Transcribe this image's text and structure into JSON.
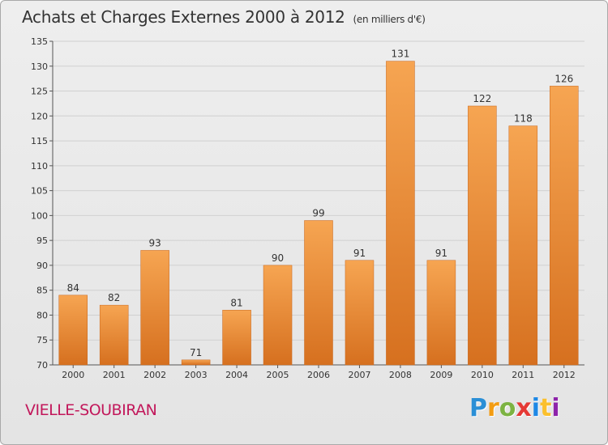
{
  "title": "Achats et Charges Externes 2000 à 2012",
  "subtitle": "(en milliers d'€)",
  "commune": "VIELLE-SOUBIRAN",
  "logo": {
    "letters": [
      "P",
      "r",
      "o",
      "x",
      "i",
      "t",
      "i"
    ],
    "colors": [
      "#2a8fd6",
      "#f39c12",
      "#7cb342",
      "#e53935",
      "#1e88e5",
      "#fbc02d",
      "#8e24aa"
    ]
  },
  "colors": {
    "bar": "#f0923a",
    "bar_dark": "#d2691e",
    "grid": "#d0d0d0"
  },
  "chart_data": {
    "type": "bar",
    "categories": [
      "2000",
      "2001",
      "2002",
      "2003",
      "2004",
      "2005",
      "2006",
      "2007",
      "2008",
      "2009",
      "2010",
      "2011",
      "2012"
    ],
    "values": [
      84,
      82,
      93,
      71,
      81,
      90,
      99,
      91,
      131,
      91,
      122,
      118,
      126
    ],
    "title": "Achats et Charges Externes 2000 à 2012",
    "xlabel": "",
    "ylabel": "",
    "ylim": [
      70,
      135
    ],
    "yticks": [
      70,
      75,
      80,
      85,
      90,
      95,
      100,
      105,
      110,
      115,
      120,
      125,
      130,
      135
    ],
    "grid": true,
    "data_labels": true
  }
}
